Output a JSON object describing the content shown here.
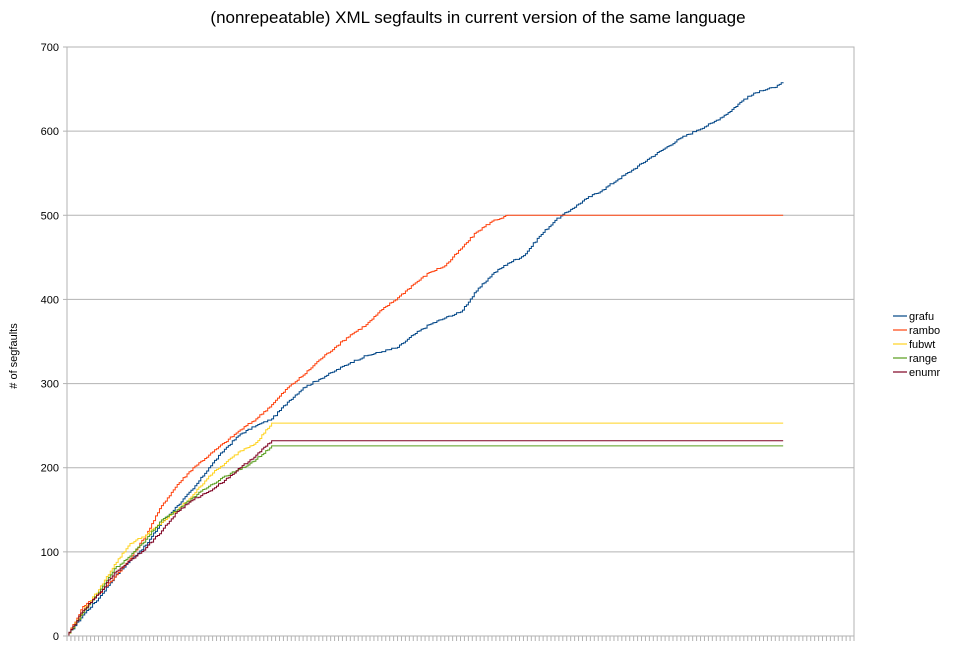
{
  "chart_data": {
    "type": "line",
    "title": "(nonrepeatable) XML segfaults in current version of the same language",
    "xlabel": "",
    "ylabel": "# of segfaults",
    "ylim": [
      0,
      700
    ],
    "yticks": [
      0,
      100,
      200,
      300,
      400,
      500,
      600,
      700
    ],
    "xlim": [
      0,
      1000
    ],
    "grid": "horizontal",
    "legend_position": "right",
    "series": [
      {
        "name": "grafu",
        "color": "#004586",
        "points": [
          [
            0,
            0
          ],
          [
            20,
            25
          ],
          [
            40,
            45
          ],
          [
            60,
            70
          ],
          [
            80,
            90
          ],
          [
            100,
            108
          ],
          [
            120,
            135
          ],
          [
            140,
            155
          ],
          [
            160,
            175
          ],
          [
            180,
            200
          ],
          [
            200,
            222
          ],
          [
            220,
            240
          ],
          [
            240,
            250
          ],
          [
            260,
            258
          ],
          [
            280,
            278
          ],
          [
            300,
            295
          ],
          [
            320,
            305
          ],
          [
            340,
            315
          ],
          [
            360,
            325
          ],
          [
            380,
            333
          ],
          [
            400,
            338
          ],
          [
            420,
            343
          ],
          [
            440,
            358
          ],
          [
            460,
            370
          ],
          [
            480,
            378
          ],
          [
            500,
            385
          ],
          [
            520,
            410
          ],
          [
            540,
            430
          ],
          [
            560,
            443
          ],
          [
            580,
            452
          ],
          [
            600,
            475
          ],
          [
            620,
            494
          ],
          [
            640,
            507
          ],
          [
            660,
            520
          ],
          [
            680,
            530
          ],
          [
            700,
            543
          ],
          [
            720,
            555
          ],
          [
            740,
            568
          ],
          [
            760,
            580
          ],
          [
            780,
            592
          ],
          [
            800,
            601
          ],
          [
            820,
            610
          ],
          [
            840,
            622
          ],
          [
            860,
            638
          ],
          [
            880,
            648
          ],
          [
            900,
            652
          ],
          [
            910,
            658
          ]
        ]
      },
      {
        "name": "rambo",
        "color": "#ff420e",
        "points": [
          [
            0,
            0
          ],
          [
            20,
            35
          ],
          [
            40,
            50
          ],
          [
            60,
            70
          ],
          [
            80,
            92
          ],
          [
            100,
            120
          ],
          [
            120,
            155
          ],
          [
            140,
            180
          ],
          [
            160,
            200
          ],
          [
            180,
            215
          ],
          [
            200,
            230
          ],
          [
            220,
            245
          ],
          [
            240,
            258
          ],
          [
            260,
            275
          ],
          [
            280,
            295
          ],
          [
            300,
            310
          ],
          [
            320,
            328
          ],
          [
            340,
            343
          ],
          [
            360,
            358
          ],
          [
            380,
            370
          ],
          [
            400,
            388
          ],
          [
            420,
            402
          ],
          [
            440,
            418
          ],
          [
            460,
            432
          ],
          [
            480,
            440
          ],
          [
            500,
            460
          ],
          [
            520,
            480
          ],
          [
            540,
            493
          ],
          [
            560,
            500
          ],
          [
            910,
            500
          ]
        ]
      },
      {
        "name": "fubwt",
        "color": "#ffd320",
        "points": [
          [
            0,
            0
          ],
          [
            20,
            30
          ],
          [
            40,
            55
          ],
          [
            60,
            85
          ],
          [
            80,
            110
          ],
          [
            100,
            120
          ],
          [
            120,
            135
          ],
          [
            140,
            150
          ],
          [
            160,
            168
          ],
          [
            180,
            190
          ],
          [
            200,
            205
          ],
          [
            220,
            220
          ],
          [
            240,
            230
          ],
          [
            260,
            253
          ],
          [
            910,
            253
          ]
        ]
      },
      {
        "name": "range",
        "color": "#579d1c",
        "points": [
          [
            0,
            0
          ],
          [
            20,
            28
          ],
          [
            40,
            52
          ],
          [
            60,
            80
          ],
          [
            80,
            95
          ],
          [
            100,
            115
          ],
          [
            120,
            138
          ],
          [
            140,
            150
          ],
          [
            160,
            165
          ],
          [
            180,
            178
          ],
          [
            200,
            190
          ],
          [
            220,
            198
          ],
          [
            240,
            210
          ],
          [
            260,
            226
          ],
          [
            910,
            226
          ]
        ]
      },
      {
        "name": "enumr",
        "color": "#7e0021",
        "points": [
          [
            0,
            0
          ],
          [
            20,
            30
          ],
          [
            40,
            50
          ],
          [
            60,
            75
          ],
          [
            80,
            90
          ],
          [
            100,
            105
          ],
          [
            120,
            125
          ],
          [
            140,
            148
          ],
          [
            160,
            162
          ],
          [
            180,
            172
          ],
          [
            200,
            185
          ],
          [
            220,
            200
          ],
          [
            240,
            215
          ],
          [
            260,
            232
          ],
          [
            910,
            232
          ]
        ]
      }
    ]
  }
}
